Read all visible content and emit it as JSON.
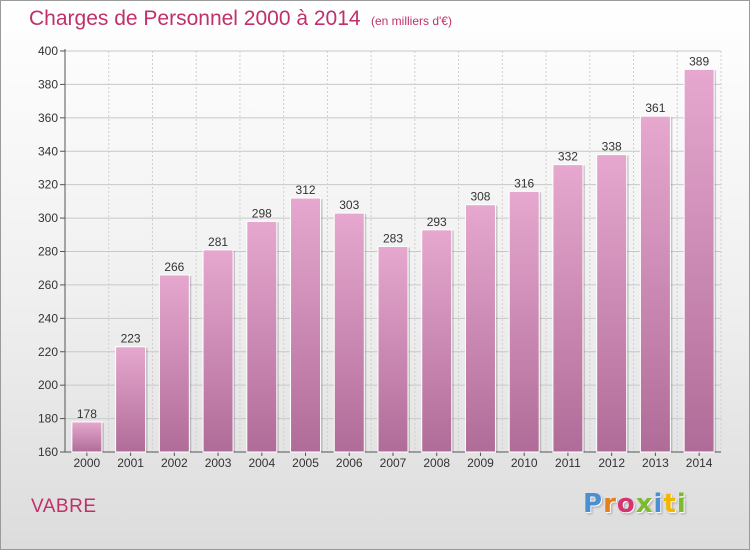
{
  "header": {
    "title": "Charges de Personnel 2000 à 2014",
    "subtitle": "(en milliers d'€)"
  },
  "footer": {
    "commune": "VABRE",
    "logo": "Proxiti",
    "logo_colors": [
      "#4a8fd0",
      "#e87e1d",
      "#d6336e",
      "#7cbb2c",
      "#4a8fd0",
      "#f2b600",
      "#7cbb2c"
    ]
  },
  "colors": {
    "accent": "#c0306a",
    "bar_top": "#e6a8cf",
    "bar_bottom": "#b06c98"
  },
  "chart_data": {
    "type": "bar",
    "title": "Charges de Personnel 2000 à 2014",
    "subtitle": "(en milliers d'€)",
    "xlabel": "",
    "ylabel": "",
    "categories": [
      "2000",
      "2001",
      "2002",
      "2003",
      "2004",
      "2005",
      "2006",
      "2007",
      "2008",
      "2009",
      "2010",
      "2011",
      "2012",
      "2013",
      "2014"
    ],
    "values": [
      178,
      223,
      266,
      281,
      298,
      312,
      303,
      283,
      293,
      308,
      316,
      332,
      338,
      361,
      389
    ],
    "ylim": [
      160,
      400
    ],
    "yticks": [
      160,
      180,
      200,
      220,
      240,
      260,
      280,
      300,
      320,
      340,
      360,
      380,
      400
    ],
    "grid": true,
    "data_labels": true
  }
}
